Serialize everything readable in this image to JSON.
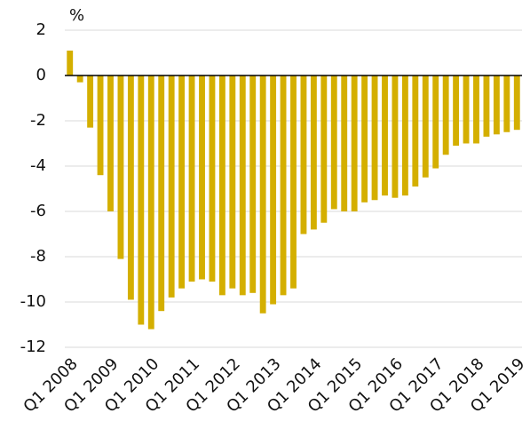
{
  "chart_data": {
    "type": "bar",
    "y_label": "%",
    "categories": [
      "Q1 2008",
      null,
      null,
      null,
      "Q1 2009",
      null,
      null,
      null,
      "Q1 2010",
      null,
      null,
      null,
      "Q1 2011",
      null,
      null,
      null,
      "Q1 2012",
      null,
      null,
      null,
      "Q1 2013",
      null,
      null,
      null,
      "Q1 2014",
      null,
      null,
      null,
      "Q1 2015",
      null,
      null,
      null,
      "Q1 2016",
      null,
      null,
      null,
      "Q1 2017",
      null,
      null,
      null,
      "Q1 2018",
      null,
      null,
      null,
      "Q1 2019"
    ],
    "values": [
      1.1,
      -0.3,
      -2.3,
      -4.4,
      -6.0,
      -8.1,
      -9.9,
      -11.0,
      -11.2,
      -10.4,
      -9.8,
      -9.4,
      -9.1,
      -9.0,
      -9.1,
      -9.7,
      -9.4,
      -9.7,
      -9.6,
      -10.5,
      -10.1,
      -9.7,
      -9.4,
      -7.0,
      -6.8,
      -6.5,
      -5.9,
      -6.0,
      -6.0,
      -5.6,
      -5.5,
      -5.3,
      -5.4,
      -5.3,
      -4.9,
      -4.5,
      -4.1,
      -3.5,
      -3.1,
      -3.0,
      -3.0,
      -2.7,
      -2.6,
      -2.5,
      -2.4
    ],
    "color": "#d4af00",
    "ylim": [
      -12,
      2
    ],
    "yticks": [
      -12,
      -10,
      -8,
      -6,
      -4,
      -2,
      0,
      2
    ],
    "grid": true
  }
}
